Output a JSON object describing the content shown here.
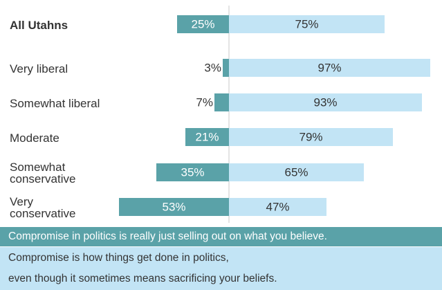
{
  "colors": {
    "disagree": "#5aa2a8",
    "agree": "#c2e4f5",
    "divider": "#c8c8c8",
    "dark_text": "#333333"
  },
  "chart_data": {
    "type": "bar",
    "orientation": "horizontal-diverging",
    "categories": [
      "All Utahns",
      "Very liberal",
      "Somewhat liberal",
      "Moderate",
      "Somewhat conservative",
      "Very conservative"
    ],
    "category_lines": [
      [
        "All Utahns"
      ],
      [
        "Very liberal"
      ],
      [
        "Somewhat liberal"
      ],
      [
        "Moderate"
      ],
      [
        "Somewhat",
        "conservative"
      ],
      [
        "Very",
        "conservative"
      ]
    ],
    "series": [
      {
        "name": "Compromise in politics is really just selling out on what you believe.",
        "values": [
          25,
          3,
          7,
          21,
          35,
          53
        ]
      },
      {
        "name": "Compromise is how things get done in politics, even though it sometimes means sacrificing your beliefs.",
        "values": [
          75,
          97,
          93,
          79,
          65,
          47
        ]
      }
    ],
    "value_suffix": "%",
    "xlim": [
      -100,
      100
    ],
    "legend_position": "bottom"
  },
  "legend": {
    "dark_text": "Compromise in politics is really just selling out on what you believe.",
    "light_line1": "Compromise is how things get done in politics,",
    "light_line2": "even though it sometimes means sacrificing your beliefs."
  }
}
